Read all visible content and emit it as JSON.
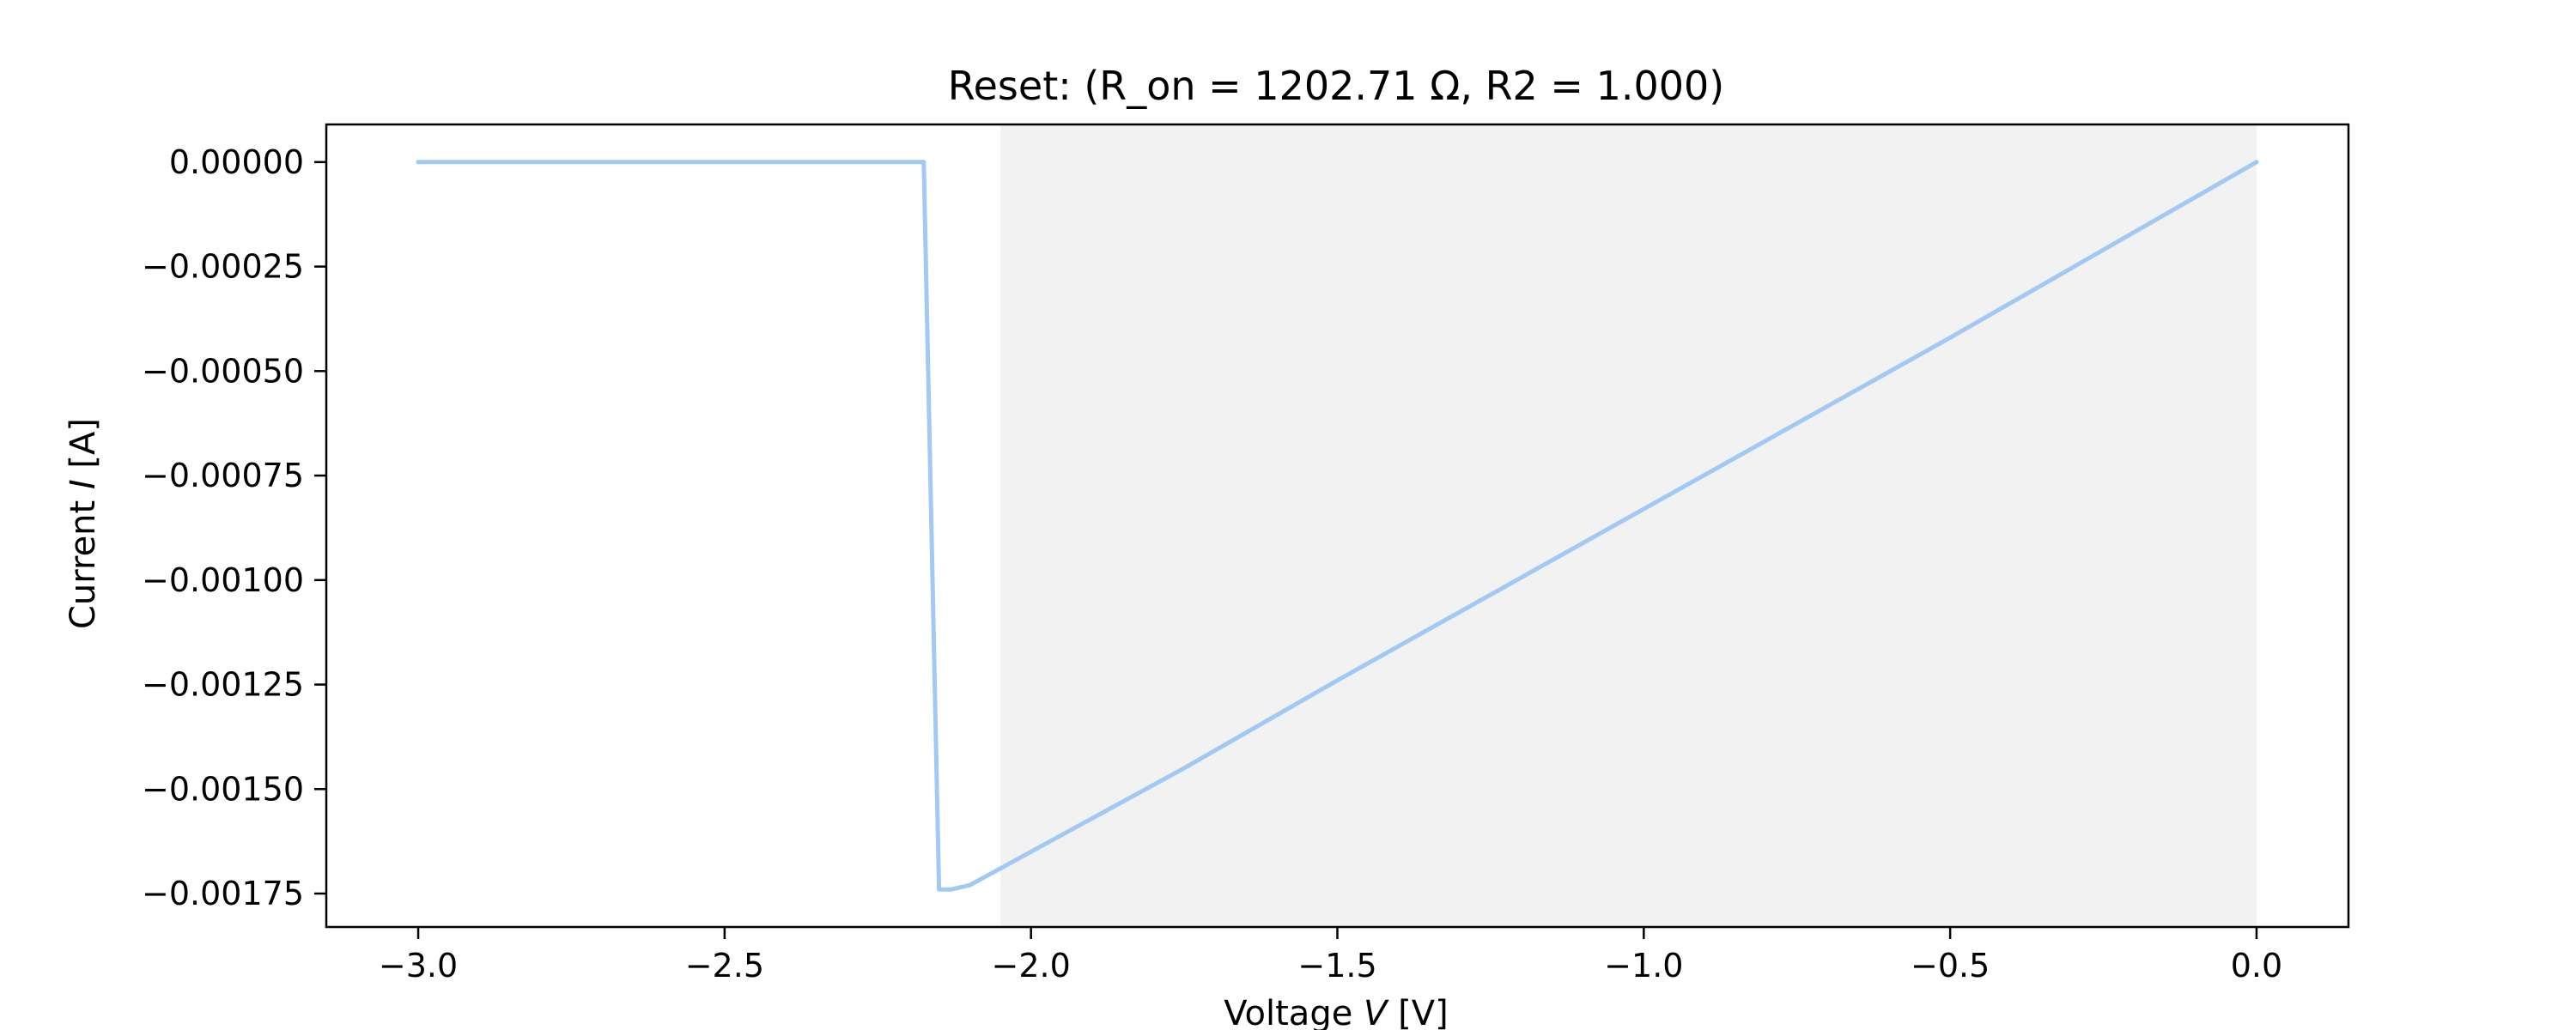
{
  "chart_data": {
    "type": "line",
    "title": "Reset: (R_on = 1202.71 Ω, R2 = 1.000)",
    "xlabel": {
      "prefix": "Voltage ",
      "var": "V",
      "suffix": " [V]"
    },
    "ylabel": {
      "prefix": "Current ",
      "var": "I",
      "suffix": " [A]"
    },
    "xlim": [
      -3.15,
      0.15
    ],
    "ylim": [
      -0.00183,
      9e-05
    ],
    "xticks": [
      -3.0,
      -2.5,
      -2.0,
      -1.5,
      -1.0,
      -0.5,
      0.0
    ],
    "xtick_labels": [
      "−3.0",
      "−2.5",
      "−2.0",
      "−1.5",
      "−1.0",
      "−0.5",
      "0.0"
    ],
    "yticks": [
      0.0,
      -0.00025,
      -0.0005,
      -0.00075,
      -0.001,
      -0.00125,
      -0.0015,
      -0.00175
    ],
    "ytick_labels": [
      "0.00000",
      "−0.00025",
      "−0.00050",
      "−0.00075",
      "−0.00100",
      "−0.00125",
      "−0.00150",
      "−0.00175"
    ],
    "grid": false,
    "shaded_region": {
      "x": [
        -2.05,
        0.0
      ],
      "color": "#f2f2f2"
    },
    "series": [
      {
        "color": "#a1c9f4",
        "x": [
          -3.0,
          -2.175,
          -2.15,
          -2.13,
          -2.1,
          -2.05,
          -1.75,
          -1.5,
          -1.0,
          -0.5,
          0.0
        ],
        "y": [
          0.0,
          0.0,
          -0.00174,
          -0.00174,
          -0.00173,
          -0.00169,
          -0.00145,
          -0.00124,
          -0.00083,
          -0.00042,
          0.0
        ]
      }
    ]
  }
}
